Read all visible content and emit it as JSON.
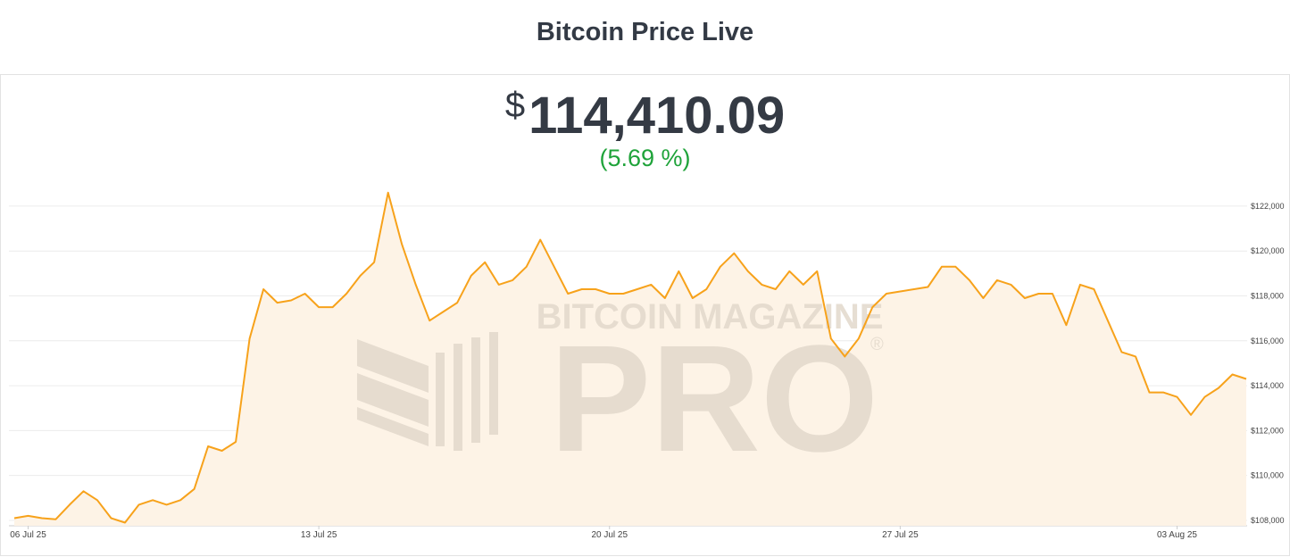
{
  "title": "Bitcoin Price Live",
  "price": {
    "currency": "$",
    "value": "114,410.09",
    "change": "(5.69 %)"
  },
  "watermark": {
    "top": "BITCOIN MAGAZINE",
    "main": "PRO",
    "mark": "®"
  },
  "chart_data": {
    "type": "line",
    "color": "#f7a21b",
    "area_color": "#fdf3e6",
    "grid": true,
    "categories": [
      null,
      "06 Jul 25",
      null,
      null,
      null,
      null,
      null,
      null,
      null,
      null,
      null,
      null,
      null,
      null,
      null,
      null,
      null,
      null,
      null,
      null,
      null,
      null,
      "13 Jul 25",
      null,
      null,
      null,
      null,
      null,
      null,
      null,
      null,
      null,
      null,
      null,
      null,
      null,
      null,
      null,
      null,
      null,
      null,
      null,
      null,
      "20 Jul 25",
      null,
      null,
      null,
      null,
      null,
      null,
      null,
      null,
      null,
      null,
      null,
      null,
      null,
      null,
      null,
      null,
      null,
      null,
      null,
      null,
      "27 Jul 25",
      null,
      null,
      null,
      null,
      null,
      null,
      null,
      null,
      null,
      null,
      null,
      null,
      null,
      null,
      null,
      null,
      null,
      null,
      null,
      "03 Aug 25",
      null,
      null,
      null,
      null,
      null
    ],
    "values": [
      108100,
      108200,
      108100,
      108050,
      108700,
      109300,
      108900,
      108100,
      107900,
      108700,
      108900,
      108700,
      108900,
      109400,
      111300,
      111100,
      111500,
      116100,
      118300,
      117700,
      117800,
      118100,
      117500,
      117500,
      118100,
      118900,
      119500,
      122600,
      120300,
      118500,
      116900,
      117300,
      117700,
      118900,
      119500,
      118500,
      118700,
      119300,
      120500,
      119300,
      118100,
      118300,
      118300,
      118100,
      118100,
      118300,
      118500,
      117900,
      119100,
      117900,
      118300,
      119300,
      119900,
      119100,
      118500,
      118300,
      119100,
      118500,
      119100,
      116100,
      115300,
      116100,
      117500,
      118100,
      118200,
      118300,
      118400,
      119300,
      119300,
      118700,
      117900,
      118700,
      118500,
      117900,
      118100,
      118100,
      116700,
      118500,
      118300,
      116900,
      115500,
      115300,
      113700,
      113700,
      113500,
      112700,
      113500,
      113900,
      114500,
      114300
    ],
    "ylim": [
      107760,
      123230
    ],
    "yticks": [
      {
        "value": 108000,
        "label": "$108,000"
      },
      {
        "value": 110000,
        "label": "$110,000"
      },
      {
        "value": 112000,
        "label": "$112,000"
      },
      {
        "value": 114000,
        "label": "$114,000"
      },
      {
        "value": 116000,
        "label": "$116,000"
      },
      {
        "value": 118000,
        "label": "$118,000"
      },
      {
        "value": 120000,
        "label": "$120,000"
      },
      {
        "value": 122000,
        "label": "$122,000"
      }
    ]
  }
}
